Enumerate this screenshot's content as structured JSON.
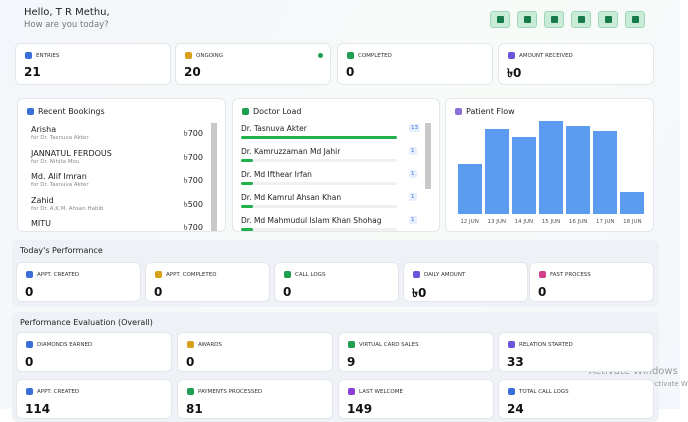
{
  "header": {
    "greeting": "Hello, T R Methu,",
    "subtitle": "How are you today?"
  },
  "summary": [
    {
      "label": "ENTRIES",
      "value": 21
    },
    {
      "label": "ONGOING",
      "value": 20
    },
    {
      "label": "COMPLETED",
      "value": 0
    },
    {
      "label": "AMOUNT RECEIVED",
      "value": "৳0"
    }
  ],
  "recent_bookings": {
    "title": "Recent Bookings",
    "rows": [
      {
        "name": "Arisha",
        "doctor": "for Dr. Tasnuva Akter",
        "amount": "৳700"
      },
      {
        "name": "JANNATUL FERDOUS",
        "doctor": "for Dr. Nihita Mou",
        "amount": "৳700"
      },
      {
        "name": "Md. Alif Imran",
        "doctor": "for Dr. Tasnuva Akter",
        "amount": "৳700"
      },
      {
        "name": "Zahid",
        "doctor": "for Dr. A.K.M. Ahsan Habib",
        "amount": "৳500"
      },
      {
        "name": "MITU",
        "doctor": "",
        "amount": "৳700"
      }
    ]
  },
  "doctor_load": {
    "title": "Doctor Load",
    "rows": [
      {
        "name": "Dr. Tasnuva Akter",
        "count": 13
      },
      {
        "name": "Dr. Kamruzzaman Md Jahir",
        "count": 1
      },
      {
        "name": "Dr. Md Ifthear Irfan",
        "count": 1
      },
      {
        "name": "Dr. Md Kamrul Ahsan Khan",
        "count": 1
      },
      {
        "name": "Dr. Md Mahmudul Islam Khan Shohag",
        "count": 1
      }
    ]
  },
  "patient_flow": {
    "title": "Patient Flow",
    "categories": [
      "12 JUN",
      "13 JUN",
      "14 JUN",
      "15 JUN",
      "16 JUN",
      "17 JUN",
      "18 JUN"
    ],
    "values": [
      49,
      83,
      75,
      91,
      86,
      81,
      22
    ],
    "color": "#5b9cf0"
  },
  "todays_performance": {
    "title": "Today's Performance",
    "cards": [
      {
        "label": "APPT. CREATED",
        "value": 0
      },
      {
        "label": "APPT. COMPLETED",
        "value": 0
      },
      {
        "label": "CALL LOGS",
        "value": 0
      },
      {
        "label": "DAILY AMOUNT",
        "value": "৳0"
      },
      {
        "label": "FAST PROCESS",
        "value": 0
      }
    ]
  },
  "performance_evaluation": {
    "title": "Performance Evaluation (Overall)",
    "cards": [
      {
        "label": "DIAMONDS EARNED",
        "value": 0
      },
      {
        "label": "AWARDS",
        "value": 0
      },
      {
        "label": "VIRTUAL CARD SALES",
        "value": 9
      },
      {
        "label": "RELATION STARTED",
        "value": 33
      },
      {
        "label": "APPT. CREATED",
        "value": 114
      },
      {
        "label": "PAYMENTS PROCESSED",
        "value": 81
      },
      {
        "label": "LAST WELCOME",
        "value": 149
      },
      {
        "label": "TOTAL CALL LOGS",
        "value": 24
      }
    ]
  },
  "watermark": {
    "title": "Activate Windows",
    "subtitle": "Go to Settings to activate W"
  }
}
